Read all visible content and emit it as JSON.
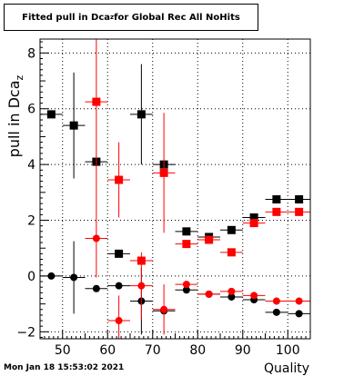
{
  "header": {
    "title_pre": "Fitted pull in Dca",
    "title_sub": "z",
    "title_post": " for Global Rec All NoHits"
  },
  "footer": {
    "timestamp": "Mon Jan 18 15:53:02 2021"
  },
  "chart_data": {
    "type": "scatter",
    "title": "Fitted pull in Dca_z for Global Rec All NoHits",
    "xlabel": "Quality",
    "ylabel": "pull in Dca_z",
    "xlim": [
      45,
      105
    ],
    "ylim": [
      -2.25,
      8.5
    ],
    "xticks": [
      50,
      60,
      70,
      80,
      90,
      100
    ],
    "yticks": [
      -2,
      0,
      2,
      4,
      6,
      8
    ],
    "grid": true,
    "colors": {
      "black": "#000000",
      "red": "#ff0000"
    },
    "series": [
      {
        "color": "black",
        "marker": "square",
        "x": [
          47.5,
          52.5,
          57.5,
          62.5,
          67.5,
          72.5,
          77.5,
          82.5,
          87.5,
          92.5,
          97.5,
          102.5
        ],
        "y": [
          5.8,
          5.4,
          4.1,
          0.8,
          5.8,
          4.0,
          1.6,
          1.4,
          1.65,
          2.1,
          2.75,
          2.75
        ],
        "yerr": [
          0,
          1.9,
          0,
          0,
          1.8,
          0,
          0,
          0,
          0,
          0,
          0,
          0
        ]
      },
      {
        "color": "red",
        "marker": "square",
        "x": [
          57.5,
          62.5,
          67.5,
          72.5,
          77.5,
          82.5,
          87.5,
          92.5,
          97.5,
          102.5
        ],
        "y": [
          6.25,
          3.45,
          0.55,
          3.7,
          1.15,
          1.3,
          0.85,
          1.9,
          2.3,
          2.3
        ],
        "yerr": [
          6.3,
          1.35,
          0,
          2.15,
          0,
          0,
          0,
          0,
          0,
          0
        ]
      },
      {
        "color": "black",
        "marker": "circle",
        "x": [
          47.5,
          52.5,
          57.5,
          62.5,
          67.5,
          72.5,
          77.5,
          82.5,
          87.5,
          92.5,
          97.5,
          102.5
        ],
        "y": [
          0.0,
          -0.05,
          -0.45,
          -0.35,
          -0.9,
          -1.25,
          -0.5,
          -0.65,
          -0.75,
          -0.85,
          -1.3,
          -1.35
        ],
        "yerr": [
          0,
          1.3,
          0,
          0,
          1.2,
          0,
          0,
          0,
          0,
          0,
          0,
          0
        ]
      },
      {
        "color": "red",
        "marker": "circle",
        "x": [
          57.5,
          62.5,
          67.5,
          72.5,
          77.5,
          82.5,
          87.5,
          92.5,
          97.5,
          102.5
        ],
        "y": [
          1.35,
          -1.6,
          -0.35,
          -1.2,
          -0.3,
          -0.65,
          -0.55,
          -0.7,
          -0.9,
          -0.9
        ],
        "yerr": [
          0,
          0.9,
          1.2,
          0.9,
          0,
          0,
          0,
          0,
          0,
          0
        ]
      }
    ]
  }
}
